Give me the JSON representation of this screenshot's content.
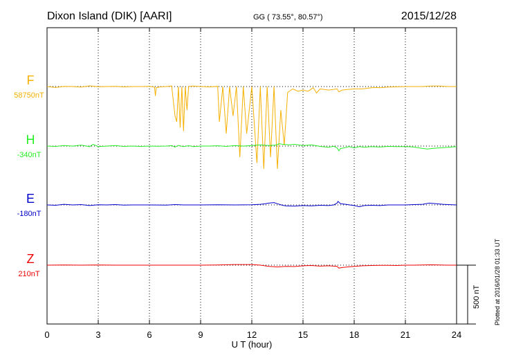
{
  "header": {
    "station": "Dixon Island (DIK)  [AARI]",
    "coords": "GG ( 73.55°,  80.57°)",
    "date": "2015/12/28"
  },
  "plotted_note": "Plotted at 2016/01/28 01:33 UT",
  "scale_label": "500 nT",
  "chart_data": {
    "type": "line",
    "xlabel": "U T (hour)",
    "xlim": [
      0,
      24
    ],
    "xticks": [
      0,
      3,
      6,
      9,
      12,
      15,
      18,
      21,
      24
    ],
    "scale_bar_nT": 500,
    "channels": [
      {
        "name": "F",
        "base_label": "58750nT",
        "color": "#f5b000",
        "points": [
          [
            0,
            0
          ],
          [
            0.5,
            -8
          ],
          [
            1,
            2
          ],
          [
            1.5,
            0
          ],
          [
            2,
            -4
          ],
          [
            2.5,
            6
          ],
          [
            3,
            -2
          ],
          [
            3.5,
            0
          ],
          [
            4,
            2
          ],
          [
            4.5,
            -3
          ],
          [
            5,
            0
          ],
          [
            5.5,
            0
          ],
          [
            6,
            2
          ],
          [
            6.3,
            -5
          ],
          [
            6.35,
            -80
          ],
          [
            6.4,
            -10
          ],
          [
            6.6,
            -3
          ],
          [
            7,
            0
          ],
          [
            7.3,
            5
          ],
          [
            7.5,
            -250
          ],
          [
            7.6,
            -300
          ],
          [
            7.7,
            0
          ],
          [
            7.8,
            -350
          ],
          [
            7.9,
            0
          ],
          [
            8.0,
            -380
          ],
          [
            8.1,
            0
          ],
          [
            8.2,
            -200
          ],
          [
            8.3,
            0
          ],
          [
            8.5,
            5
          ],
          [
            9,
            0
          ],
          [
            9.5,
            -3
          ],
          [
            10,
            2
          ],
          [
            10.1,
            -300
          ],
          [
            10.3,
            0
          ],
          [
            10.5,
            -400
          ],
          [
            10.7,
            0
          ],
          [
            10.9,
            -250
          ],
          [
            11.1,
            0
          ],
          [
            11.3,
            -600
          ],
          [
            11.5,
            0
          ],
          [
            11.7,
            -400
          ],
          [
            12,
            0
          ],
          [
            12.3,
            -650
          ],
          [
            12.5,
            0
          ],
          [
            12.7,
            -700
          ],
          [
            12.9,
            0
          ],
          [
            13.1,
            -600
          ],
          [
            13.3,
            0
          ],
          [
            13.5,
            -700
          ],
          [
            13.7,
            -200
          ],
          [
            13.9,
            -500
          ],
          [
            14.1,
            -50
          ],
          [
            14.4,
            -20
          ],
          [
            14.7,
            -40
          ],
          [
            15,
            -30
          ],
          [
            15.3,
            -40
          ],
          [
            15.6,
            -10
          ],
          [
            15.8,
            -55
          ],
          [
            16,
            -20
          ],
          [
            16.5,
            -30
          ],
          [
            17,
            -20
          ],
          [
            17.1,
            -45
          ],
          [
            17.3,
            -30
          ],
          [
            17.6,
            -25
          ],
          [
            18,
            -20
          ],
          [
            18.5,
            -20
          ],
          [
            19,
            -10
          ],
          [
            19.3,
            -8
          ],
          [
            19.5,
            -10
          ],
          [
            20,
            -5
          ],
          [
            21,
            0
          ],
          [
            22,
            0
          ],
          [
            22.5,
            5
          ],
          [
            23,
            5
          ],
          [
            23.5,
            0
          ],
          [
            24,
            0
          ]
        ]
      },
      {
        "name": "H",
        "base_label": "-340nT",
        "color": "#22ee22",
        "points": [
          [
            0,
            0
          ],
          [
            0.5,
            -3
          ],
          [
            1,
            5
          ],
          [
            1.5,
            0
          ],
          [
            2,
            8
          ],
          [
            2.5,
            -5
          ],
          [
            2.7,
            15
          ],
          [
            3,
            -5
          ],
          [
            3.5,
            0
          ],
          [
            4,
            5
          ],
          [
            4.5,
            -3
          ],
          [
            5,
            0
          ],
          [
            5.5,
            -3
          ],
          [
            6,
            0
          ],
          [
            6.5,
            -2
          ],
          [
            7,
            0
          ],
          [
            7.3,
            5
          ],
          [
            7.5,
            -8
          ],
          [
            7.7,
            6
          ],
          [
            8,
            -5
          ],
          [
            8.3,
            3
          ],
          [
            8.6,
            -5
          ],
          [
            9,
            0
          ],
          [
            9.5,
            0
          ],
          [
            10,
            3
          ],
          [
            10.5,
            -3
          ],
          [
            11,
            5
          ],
          [
            11.5,
            0
          ],
          [
            12,
            5
          ],
          [
            12.5,
            10
          ],
          [
            13,
            5
          ],
          [
            13.4,
            8
          ],
          [
            13.6,
            20
          ],
          [
            13.8,
            15
          ],
          [
            14.2,
            10
          ],
          [
            14.5,
            15
          ],
          [
            15,
            5
          ],
          [
            15.5,
            10
          ],
          [
            16,
            -3
          ],
          [
            16.5,
            -10
          ],
          [
            16.8,
            -2
          ],
          [
            17,
            -15
          ],
          [
            17.1,
            -40
          ],
          [
            17.2,
            -20
          ],
          [
            17.4,
            -15
          ],
          [
            17.7,
            -5
          ],
          [
            18,
            -15
          ],
          [
            18.3,
            -5
          ],
          [
            18.6,
            -10
          ],
          [
            19,
            -5
          ],
          [
            19.5,
            -8
          ],
          [
            20,
            -3
          ],
          [
            20.5,
            -5
          ],
          [
            21,
            -5
          ],
          [
            21.5,
            -8
          ],
          [
            22,
            -20
          ],
          [
            22.3,
            -25
          ],
          [
            22.6,
            -20
          ],
          [
            23,
            -15
          ],
          [
            23.5,
            -10
          ],
          [
            24,
            -5
          ]
        ]
      },
      {
        "name": "E",
        "base_label": "-180nT",
        "color": "#0000cc",
        "points": [
          [
            0,
            0
          ],
          [
            0.5,
            -3
          ],
          [
            1,
            5
          ],
          [
            1.5,
            0
          ],
          [
            2,
            3
          ],
          [
            2.5,
            -5
          ],
          [
            3,
            2
          ],
          [
            3.5,
            0
          ],
          [
            4,
            3
          ],
          [
            4.5,
            -2
          ],
          [
            5,
            0
          ],
          [
            6,
            0
          ],
          [
            7,
            -2
          ],
          [
            7.5,
            3
          ],
          [
            8,
            0
          ],
          [
            9,
            0
          ],
          [
            10,
            2
          ],
          [
            11,
            0
          ],
          [
            12,
            2
          ],
          [
            12.5,
            5
          ],
          [
            12.8,
            10
          ],
          [
            13,
            15
          ],
          [
            13.3,
            20
          ],
          [
            13.5,
            10
          ],
          [
            13.8,
            -3
          ],
          [
            14,
            -8
          ],
          [
            14.5,
            -10
          ],
          [
            15,
            -5
          ],
          [
            15.5,
            -8
          ],
          [
            16,
            -3
          ],
          [
            16.5,
            -5
          ],
          [
            16.8,
            0
          ],
          [
            17,
            15
          ],
          [
            17.05,
            30
          ],
          [
            17.2,
            10
          ],
          [
            17.5,
            5
          ],
          [
            18,
            -5
          ],
          [
            18.3,
            -15
          ],
          [
            18.6,
            -5
          ],
          [
            19,
            -3
          ],
          [
            19.5,
            -5
          ],
          [
            20,
            0
          ],
          [
            20.5,
            0
          ],
          [
            21,
            0
          ],
          [
            21.5,
            3
          ],
          [
            22,
            5
          ],
          [
            22.4,
            15
          ],
          [
            22.8,
            10
          ],
          [
            23.2,
            5
          ],
          [
            23.5,
            3
          ],
          [
            24,
            0
          ]
        ]
      },
      {
        "name": "Z",
        "base_label": "210nT",
        "color": "#ee0000",
        "points": [
          [
            0,
            0
          ],
          [
            1,
            2
          ],
          [
            2,
            0
          ],
          [
            3,
            2
          ],
          [
            4,
            0
          ],
          [
            5,
            0
          ],
          [
            6,
            0
          ],
          [
            7,
            0
          ],
          [
            8,
            0
          ],
          [
            9,
            0
          ],
          [
            10,
            2
          ],
          [
            11,
            5
          ],
          [
            12,
            5
          ],
          [
            12.5,
            0
          ],
          [
            13,
            -10
          ],
          [
            13.5,
            -15
          ],
          [
            14,
            -10
          ],
          [
            14.5,
            -12
          ],
          [
            15,
            -5
          ],
          [
            15.5,
            -3
          ],
          [
            16,
            -8
          ],
          [
            16.5,
            -5
          ],
          [
            17,
            -10
          ],
          [
            17.1,
            -25
          ],
          [
            17.3,
            -20
          ],
          [
            17.6,
            -15
          ],
          [
            18,
            -10
          ],
          [
            18.5,
            -5
          ],
          [
            19,
            -3
          ],
          [
            19.5,
            -2
          ],
          [
            20,
            -2
          ],
          [
            20.5,
            -3
          ],
          [
            21,
            0
          ],
          [
            21.5,
            0
          ],
          [
            22,
            2
          ],
          [
            22.5,
            3
          ],
          [
            23,
            2
          ],
          [
            23.5,
            0
          ],
          [
            24,
            0
          ]
        ]
      }
    ]
  }
}
